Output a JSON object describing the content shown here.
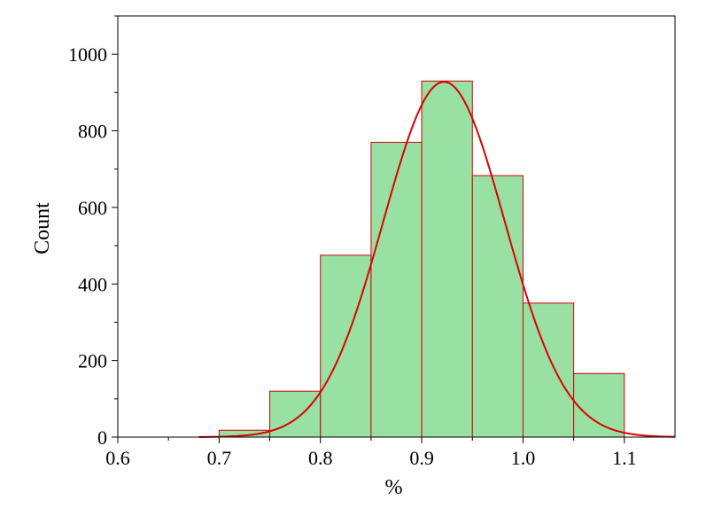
{
  "chart_data": {
    "type": "bar",
    "subtype": "histogram",
    "xlabel": "%",
    "ylabel": "Count",
    "xlim": [
      0.6,
      1.15
    ],
    "ylim": [
      0,
      1100
    ],
    "x_ticks": [
      {
        "value": 0.6,
        "label": "0.6"
      },
      {
        "value": 0.7,
        "label": "0.7"
      },
      {
        "value": 0.8,
        "label": "0.8"
      },
      {
        "value": 0.9,
        "label": "0.9"
      },
      {
        "value": 1.0,
        "label": "1.0"
      },
      {
        "value": 1.1,
        "label": "1.1"
      }
    ],
    "y_ticks": [
      {
        "value": 0,
        "label": "0"
      },
      {
        "value": 200,
        "label": "200"
      },
      {
        "value": 400,
        "label": "400"
      },
      {
        "value": 600,
        "label": "600"
      },
      {
        "value": 800,
        "label": "800"
      },
      {
        "value": 1000,
        "label": "1000"
      }
    ],
    "bins": [
      {
        "start": 0.7,
        "end": 0.75,
        "count": 18
      },
      {
        "start": 0.75,
        "end": 0.8,
        "count": 120
      },
      {
        "start": 0.8,
        "end": 0.85,
        "count": 475
      },
      {
        "start": 0.85,
        "end": 0.9,
        "count": 770
      },
      {
        "start": 0.9,
        "end": 0.95,
        "count": 930
      },
      {
        "start": 0.95,
        "end": 1.0,
        "count": 683
      },
      {
        "start": 1.0,
        "end": 1.05,
        "count": 350
      },
      {
        "start": 1.05,
        "end": 1.1,
        "count": 166
      }
    ],
    "fit_curve": {
      "type": "normal",
      "mean": 0.922,
      "sd": 0.06,
      "peak": 928,
      "x_range": [
        0.68,
        1.15
      ]
    },
    "grid": false,
    "legend": "none",
    "colors": {
      "bar_fill": "#99e0a3",
      "bar_stroke": "#cc0000",
      "curve": "#dd0000",
      "axis": "#000000"
    }
  }
}
